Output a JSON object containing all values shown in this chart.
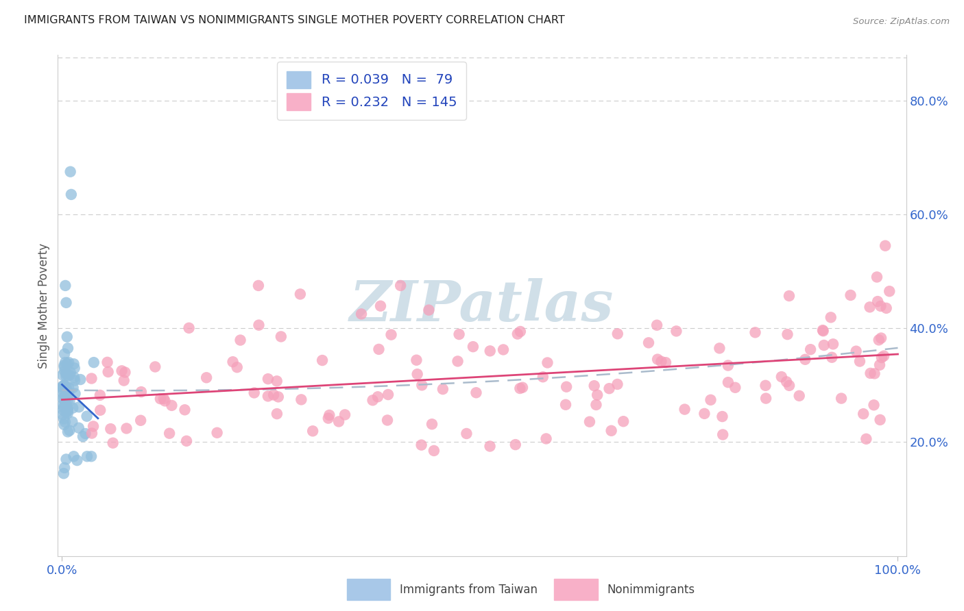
{
  "title": "IMMIGRANTS FROM TAIWAN VS NONIMMIGRANTS SINGLE MOTHER POVERTY CORRELATION CHART",
  "source": "Source: ZipAtlas.com",
  "ylabel": "Single Mother Poverty",
  "right_yticks": [
    "20.0%",
    "40.0%",
    "60.0%",
    "80.0%"
  ],
  "right_ytick_vals": [
    0.2,
    0.4,
    0.6,
    0.8
  ],
  "legend_line1": "R = 0.039   N =  79",
  "legend_line2": "R = 0.232   N = 145",
  "taiwan_color": "#90bedd",
  "taiwan_edge_color": "#7aadd0",
  "nonimm_color": "#f5a0ba",
  "nonimm_edge_color": "#ee88a8",
  "taiwan_trend_color": "#3366cc",
  "nonimm_trend_color": "#dd4477",
  "dashed_trend_color": "#aabbcc",
  "background_color": "#ffffff",
  "grid_color": "#cccccc",
  "watermark_color": "#d0dfe8",
  "ylim_min": 0.0,
  "ylim_max": 0.88,
  "xlim_min": -0.005,
  "xlim_max": 1.01,
  "title_color": "#222222",
  "source_color": "#888888",
  "tick_color": "#3366cc",
  "ylabel_color": "#555555"
}
